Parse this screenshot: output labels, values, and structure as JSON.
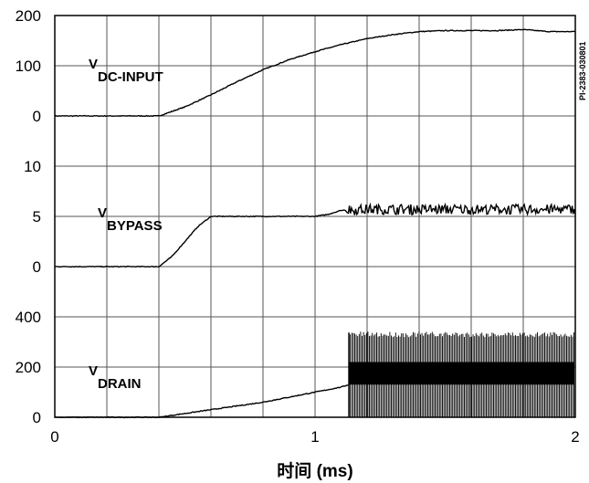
{
  "chart_data": {
    "type": "line",
    "xlabel": "时间 (ms)",
    "xticks": [
      "0",
      "1",
      "2"
    ],
    "xlim": [
      0,
      2
    ],
    "figure_ref": "PI-2383-030801",
    "panels": [
      {
        "signal": "V",
        "signal_sub": "DC-INPUT",
        "ylim": [
          0,
          200
        ],
        "yticks": [
          "200",
          "100",
          "0"
        ],
        "x": [
          0,
          0.4,
          0.5,
          0.6,
          0.7,
          0.8,
          0.9,
          1.0,
          1.1,
          1.2,
          1.3,
          1.4,
          1.5,
          1.6,
          1.7,
          1.8,
          1.9,
          2.0
        ],
        "y": [
          0,
          0,
          18,
          42,
          68,
          92,
          112,
          128,
          142,
          154,
          162,
          168,
          170,
          170,
          170,
          172,
          168,
          168
        ]
      },
      {
        "signal": "V",
        "signal_sub": "BYPASS",
        "ylim": [
          0,
          10
        ],
        "yticks": [
          "10",
          "5",
          "0"
        ],
        "x": [
          0,
          0.4,
          0.45,
          0.5,
          0.55,
          0.6,
          0.7,
          0.8,
          0.9,
          1.0,
          1.05,
          1.1,
          1.2,
          1.4,
          1.6,
          1.8,
          2.0
        ],
        "y": [
          0,
          0,
          1,
          2.5,
          4,
          5,
          5,
          5,
          5,
          5,
          5.2,
          5.6,
          5.7,
          5.7,
          5.7,
          5.7,
          5.7
        ],
        "noise_from_x": 1.12,
        "noise_amplitude": 0.5
      },
      {
        "signal": "V",
        "signal_sub": "DRAIN",
        "ylim": [
          0,
          400
        ],
        "yticks": [
          "400",
          "200",
          "0"
        ],
        "x": [
          0,
          0.4,
          0.5,
          0.6,
          0.7,
          0.8,
          0.9,
          1.0,
          1.1,
          1.13
        ],
        "y": [
          0,
          0,
          15,
          30,
          45,
          60,
          80,
          100,
          120,
          130
        ],
        "switching_from_x": 1.13,
        "switching_peak": 330,
        "switching_band": [
          130,
          220
        ]
      }
    ]
  }
}
